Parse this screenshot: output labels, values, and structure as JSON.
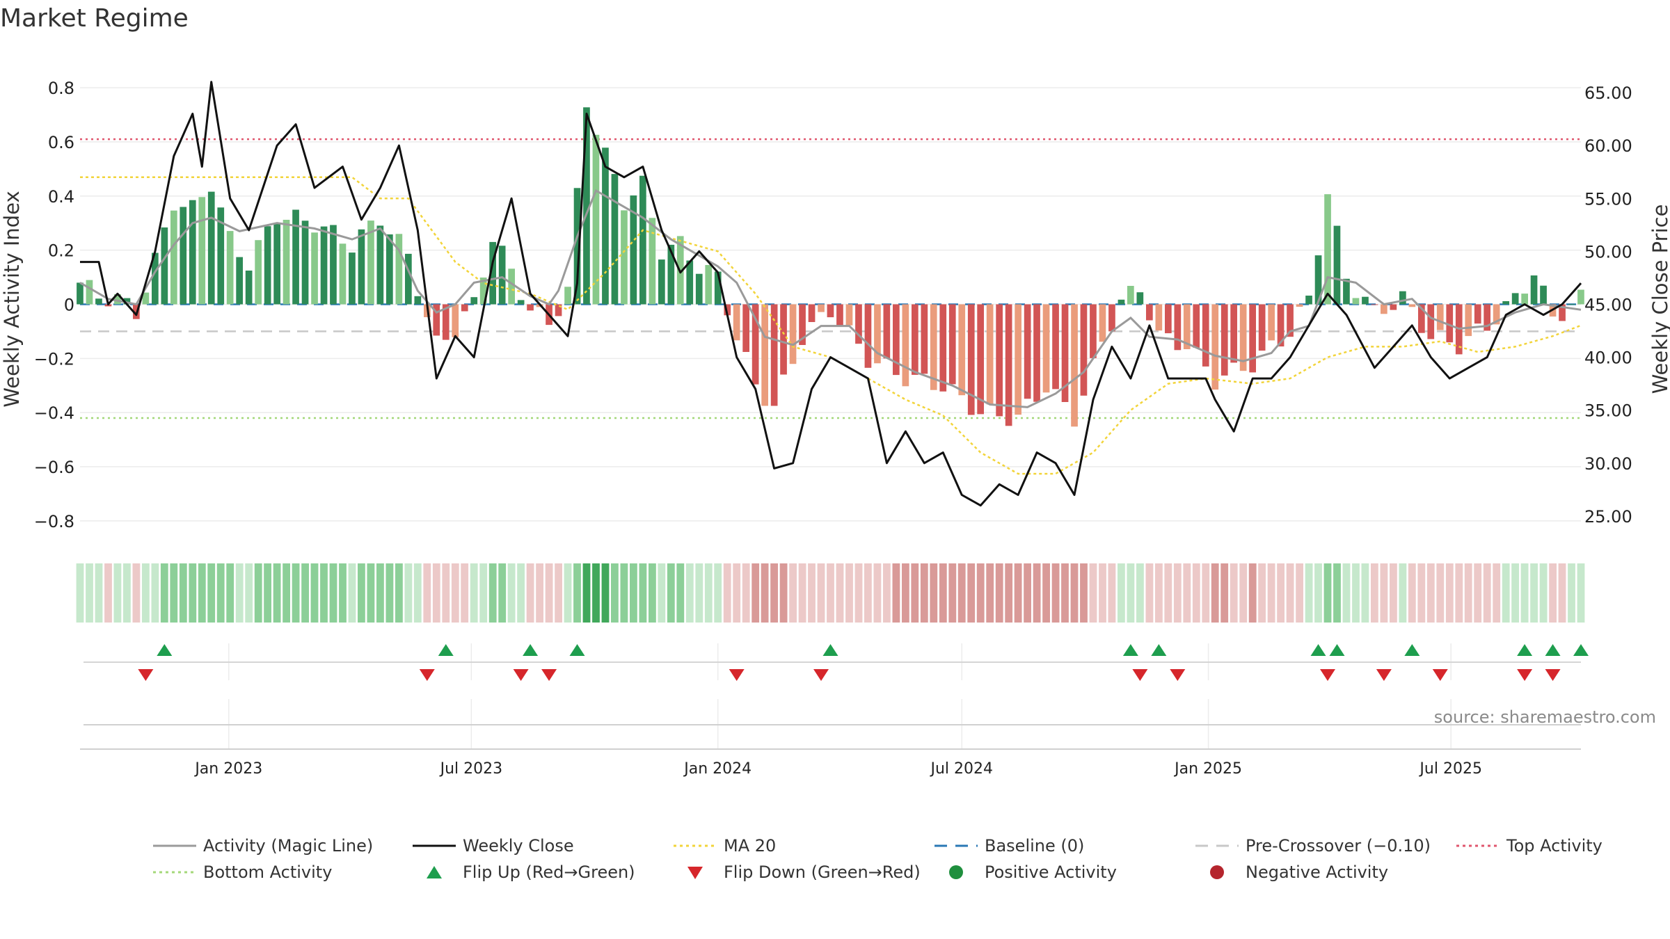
{
  "chart_data": {
    "type": "bar",
    "title": "Market Regime",
    "ylabel_left": "Weekly Activity Index",
    "ylabel_right": "Weekly Close Price",
    "ylim_left": [
      -0.88,
      0.88
    ],
    "ylim_right": [
      22.5,
      67.5
    ],
    "yticks_left": [
      0.8,
      0.6,
      0.4,
      0.2,
      0,
      -0.2,
      -0.4,
      -0.6,
      -0.8
    ],
    "ytick_labels_left": [
      "0.8",
      "0.6",
      "0.4",
      "0.2",
      "0",
      "−0.2",
      "−0.4",
      "−0.6",
      "−0.8"
    ],
    "yticks_right": [
      65,
      60,
      55,
      50,
      45,
      40,
      35,
      30,
      25
    ],
    "ytick_labels_right": [
      "65.00",
      "60.00",
      "55.00",
      "50.00",
      "45.00",
      "40.00",
      "35.00",
      "30.00",
      "25.00"
    ],
    "x_range": [
      "2022-09-12",
      "2025-10-06"
    ],
    "x_ticks": [
      {
        "date": "2023-01-01",
        "label": "Jan 2023"
      },
      {
        "date": "2023-07-01",
        "label": "Jul 2023"
      },
      {
        "date": "2024-01-01",
        "label": "Jan 2024"
      },
      {
        "date": "2024-07-01",
        "label": "Jul 2024"
      },
      {
        "date": "2025-01-01",
        "label": "Jan 2025"
      },
      {
        "date": "2025-07-01",
        "label": "Jul 2025"
      }
    ],
    "top_activity": 0.61,
    "bottom_activity": -0.42,
    "pre_crossover": -0.1,
    "baseline": 0,
    "activity_keypoints": [
      [
        "2022-09-12",
        0.08
      ],
      [
        "2022-10-03",
        0.02
      ],
      [
        "2022-10-24",
        0.0
      ],
      [
        "2022-11-07",
        0.12
      ],
      [
        "2022-11-21",
        0.22
      ],
      [
        "2022-12-05",
        0.3
      ],
      [
        "2022-12-19",
        0.32
      ],
      [
        "2023-01-09",
        0.27
      ],
      [
        "2023-02-06",
        0.3
      ],
      [
        "2023-03-06",
        0.28
      ],
      [
        "2023-04-03",
        0.24
      ],
      [
        "2023-04-24",
        0.28
      ],
      [
        "2023-05-08",
        0.2
      ],
      [
        "2023-05-22",
        0.05
      ],
      [
        "2023-06-05",
        -0.03
      ],
      [
        "2023-06-19",
        0.0
      ],
      [
        "2023-07-03",
        0.08
      ],
      [
        "2023-07-24",
        0.1
      ],
      [
        "2023-08-14",
        0.03
      ],
      [
        "2023-08-28",
        0.0
      ],
      [
        "2023-09-04",
        0.05
      ],
      [
        "2023-09-18",
        0.25
      ],
      [
        "2023-10-02",
        0.42
      ],
      [
        "2023-10-16",
        0.38
      ],
      [
        "2023-11-06",
        0.32
      ],
      [
        "2023-11-27",
        0.24
      ],
      [
        "2023-12-18",
        0.18
      ],
      [
        "2024-01-01",
        0.14
      ],
      [
        "2024-01-15",
        0.08
      ],
      [
        "2024-02-05",
        -0.12
      ],
      [
        "2024-02-26",
        -0.15
      ],
      [
        "2024-03-18",
        -0.08
      ],
      [
        "2024-04-08",
        -0.08
      ],
      [
        "2024-04-29",
        -0.18
      ],
      [
        "2024-05-27",
        -0.25
      ],
      [
        "2024-06-24",
        -0.3
      ],
      [
        "2024-07-22",
        -0.37
      ],
      [
        "2024-08-19",
        -0.38
      ],
      [
        "2024-09-09",
        -0.33
      ],
      [
        "2024-09-30",
        -0.25
      ],
      [
        "2024-10-21",
        -0.1
      ],
      [
        "2024-11-04",
        -0.05
      ],
      [
        "2024-11-18",
        -0.12
      ],
      [
        "2024-12-09",
        -0.13
      ],
      [
        "2025-01-06",
        -0.19
      ],
      [
        "2025-01-27",
        -0.21
      ],
      [
        "2025-02-17",
        -0.18
      ],
      [
        "2025-03-03",
        -0.1
      ],
      [
        "2025-03-17",
        -0.08
      ],
      [
        "2025-03-31",
        0.1
      ],
      [
        "2025-04-21",
        0.08
      ],
      [
        "2025-05-12",
        0.0
      ],
      [
        "2025-06-02",
        0.02
      ],
      [
        "2025-06-16",
        -0.05
      ],
      [
        "2025-07-07",
        -0.09
      ],
      [
        "2025-07-28",
        -0.08
      ],
      [
        "2025-08-18",
        -0.03
      ],
      [
        "2025-09-08",
        0.0
      ],
      [
        "2025-10-06",
        -0.02
      ]
    ],
    "close_keypoints": [
      [
        "2022-09-12",
        49.0
      ],
      [
        "2022-09-26",
        49.0
      ],
      [
        "2022-10-03",
        45.0
      ],
      [
        "2022-10-10",
        46.0
      ],
      [
        "2022-10-24",
        44.0
      ],
      [
        "2022-11-07",
        50.0
      ],
      [
        "2022-11-21",
        59.0
      ],
      [
        "2022-12-05",
        63.0
      ],
      [
        "2022-12-12",
        58.0
      ],
      [
        "2022-12-19",
        66.0
      ],
      [
        "2023-01-02",
        55.0
      ],
      [
        "2023-01-16",
        52.0
      ],
      [
        "2023-02-06",
        60.0
      ],
      [
        "2023-02-20",
        62.0
      ],
      [
        "2023-03-06",
        56.0
      ],
      [
        "2023-03-27",
        58.0
      ],
      [
        "2023-04-10",
        53.0
      ],
      [
        "2023-04-24",
        56.0
      ],
      [
        "2023-05-08",
        60.0
      ],
      [
        "2023-05-22",
        52.0
      ],
      [
        "2023-06-05",
        38.0
      ],
      [
        "2023-06-19",
        42.0
      ],
      [
        "2023-07-03",
        40.0
      ],
      [
        "2023-07-17",
        49.0
      ],
      [
        "2023-07-31",
        55.0
      ],
      [
        "2023-08-14",
        46.0
      ],
      [
        "2023-08-28",
        44.0
      ],
      [
        "2023-09-11",
        42.0
      ],
      [
        "2023-09-18",
        47.0
      ],
      [
        "2023-09-25",
        63.0
      ],
      [
        "2023-10-09",
        58.0
      ],
      [
        "2023-10-23",
        57.0
      ],
      [
        "2023-11-06",
        58.0
      ],
      [
        "2023-11-20",
        52.0
      ],
      [
        "2023-12-04",
        48.0
      ],
      [
        "2023-12-18",
        50.0
      ],
      [
        "2024-01-01",
        48.0
      ],
      [
        "2024-01-15",
        40.0
      ],
      [
        "2024-01-29",
        37.0
      ],
      [
        "2024-02-12",
        29.5
      ],
      [
        "2024-02-26",
        30.0
      ],
      [
        "2024-03-11",
        37.0
      ],
      [
        "2024-03-25",
        40.0
      ],
      [
        "2024-04-08",
        39.0
      ],
      [
        "2024-04-22",
        38.0
      ],
      [
        "2024-05-06",
        30.0
      ],
      [
        "2024-05-20",
        33.0
      ],
      [
        "2024-06-03",
        30.0
      ],
      [
        "2024-06-17",
        31.0
      ],
      [
        "2024-07-01",
        27.0
      ],
      [
        "2024-07-15",
        26.0
      ],
      [
        "2024-07-29",
        28.0
      ],
      [
        "2024-08-12",
        27.0
      ],
      [
        "2024-08-26",
        31.0
      ],
      [
        "2024-09-09",
        30.0
      ],
      [
        "2024-09-23",
        27.0
      ],
      [
        "2024-10-07",
        36.0
      ],
      [
        "2024-10-21",
        41.0
      ],
      [
        "2024-11-04",
        38.0
      ],
      [
        "2024-11-18",
        43.0
      ],
      [
        "2024-12-02",
        38.0
      ],
      [
        "2024-12-16",
        38.0
      ],
      [
        "2024-12-30",
        38.0
      ],
      [
        "2025-01-06",
        36.0
      ],
      [
        "2025-01-20",
        33.0
      ],
      [
        "2025-02-03",
        38.0
      ],
      [
        "2025-02-17",
        38.0
      ],
      [
        "2025-03-03",
        40.0
      ],
      [
        "2025-03-17",
        43.0
      ],
      [
        "2025-03-31",
        46.0
      ],
      [
        "2025-04-14",
        44.0
      ],
      [
        "2025-05-05",
        39.0
      ],
      [
        "2025-05-19",
        41.0
      ],
      [
        "2025-06-02",
        43.0
      ],
      [
        "2025-06-16",
        40.0
      ],
      [
        "2025-06-30",
        38.0
      ],
      [
        "2025-07-14",
        39.0
      ],
      [
        "2025-07-28",
        40.0
      ],
      [
        "2025-08-11",
        44.0
      ],
      [
        "2025-08-25",
        45.0
      ],
      [
        "2025-09-08",
        44.0
      ],
      [
        "2025-09-22",
        45.0
      ],
      [
        "2025-10-06",
        47.0
      ]
    ],
    "ma20_keypoints": [
      [
        "2022-09-12",
        57.0
      ],
      [
        "2023-04-03",
        57.0
      ],
      [
        "2023-04-24",
        55.0
      ],
      [
        "2023-05-15",
        55.0
      ],
      [
        "2023-06-19",
        49.0
      ],
      [
        "2023-07-10",
        47.0
      ],
      [
        "2023-08-14",
        46.0
      ],
      [
        "2023-09-11",
        44.5
      ],
      [
        "2023-10-09",
        48.0
      ],
      [
        "2023-11-06",
        52.0
      ],
      [
        "2023-12-04",
        51.0
      ],
      [
        "2024-01-01",
        50.0
      ],
      [
        "2024-01-29",
        46.0
      ],
      [
        "2024-02-26",
        41.0
      ],
      [
        "2024-03-25",
        40.0
      ],
      [
        "2024-04-22",
        38.0
      ],
      [
        "2024-05-20",
        36.0
      ],
      [
        "2024-06-17",
        34.5
      ],
      [
        "2024-07-15",
        31.0
      ],
      [
        "2024-08-12",
        29.0
      ],
      [
        "2024-09-09",
        29.0
      ],
      [
        "2024-10-07",
        31.0
      ],
      [
        "2024-11-04",
        35.0
      ],
      [
        "2024-12-02",
        37.5
      ],
      [
        "2024-12-30",
        38.0
      ],
      [
        "2025-02-03",
        37.5
      ],
      [
        "2025-03-03",
        38.0
      ],
      [
        "2025-03-31",
        40.0
      ],
      [
        "2025-04-28",
        41.0
      ],
      [
        "2025-05-26",
        41.0
      ],
      [
        "2025-06-23",
        41.5
      ],
      [
        "2025-07-21",
        40.5
      ],
      [
        "2025-08-18",
        41.0
      ],
      [
        "2025-09-15",
        42.0
      ],
      [
        "2025-10-06",
        43.0
      ]
    ],
    "bar_keypoints": [
      [
        "2022-09-12",
        0.08
      ],
      [
        "2022-09-26",
        0.03
      ],
      [
        "2022-10-10",
        0.02
      ],
      [
        "2022-10-24",
        -0.03
      ],
      [
        "2022-11-07",
        0.16
      ],
      [
        "2022-11-21",
        0.38
      ],
      [
        "2022-12-05",
        0.35
      ],
      [
        "2022-12-19",
        0.45
      ],
      [
        "2023-01-02",
        0.24
      ],
      [
        "2023-01-16",
        0.15
      ],
      [
        "2023-02-06",
        0.33
      ],
      [
        "2023-03-06",
        0.3
      ],
      [
        "2023-04-03",
        0.22
      ],
      [
        "2023-04-24",
        0.32
      ],
      [
        "2023-05-15",
        0.18
      ],
      [
        "2023-05-29",
        -0.05
      ],
      [
        "2023-06-05",
        -0.15
      ],
      [
        "2023-06-19",
        -0.09
      ],
      [
        "2023-07-03",
        0.0
      ],
      [
        "2023-07-17",
        0.25
      ],
      [
        "2023-07-31",
        0.12
      ],
      [
        "2023-08-14",
        -0.02
      ],
      [
        "2023-08-28",
        -0.07
      ],
      [
        "2023-09-11",
        0.05
      ],
      [
        "2023-09-25",
        0.75
      ],
      [
        "2023-10-09",
        0.55
      ],
      [
        "2023-10-23",
        0.38
      ],
      [
        "2023-11-06",
        0.44
      ],
      [
        "2023-11-20",
        0.2
      ],
      [
        "2023-12-04",
        0.22
      ],
      [
        "2023-12-18",
        0.14
      ],
      [
        "2024-01-01",
        0.1
      ],
      [
        "2024-01-15",
        -0.12
      ],
      [
        "2024-01-29",
        -0.3
      ],
      [
        "2024-02-12",
        -0.38
      ],
      [
        "2024-03-04",
        -0.12
      ],
      [
        "2024-03-25",
        -0.02
      ],
      [
        "2024-04-22",
        -0.2
      ],
      [
        "2024-05-20",
        -0.27
      ],
      [
        "2024-06-17",
        -0.3
      ],
      [
        "2024-07-15",
        -0.4
      ],
      [
        "2024-08-12",
        -0.42
      ],
      [
        "2024-09-02",
        -0.3
      ],
      [
        "2024-09-23",
        -0.42
      ],
      [
        "2024-10-14",
        -0.14
      ],
      [
        "2024-10-28",
        0.01
      ],
      [
        "2024-11-11",
        0.06
      ],
      [
        "2024-11-25",
        -0.12
      ],
      [
        "2024-12-16",
        -0.15
      ],
      [
        "2025-01-06",
        -0.28
      ],
      [
        "2025-02-03",
        -0.22
      ],
      [
        "2025-03-03",
        -0.1
      ],
      [
        "2025-03-17",
        0.02
      ],
      [
        "2025-03-31",
        0.41
      ],
      [
        "2025-04-14",
        0.1
      ],
      [
        "2025-05-05",
        -0.03
      ],
      [
        "2025-05-26",
        0.02
      ],
      [
        "2025-06-16",
        -0.12
      ],
      [
        "2025-07-07",
        -0.15
      ],
      [
        "2025-07-28",
        -0.08
      ],
      [
        "2025-08-18",
        0.02
      ],
      [
        "2025-09-01",
        0.12
      ],
      [
        "2025-09-15",
        -0.05
      ],
      [
        "2025-10-06",
        0.02
      ]
    ],
    "flip_up_dates": [
      "2022-11-14",
      "2023-06-12",
      "2023-08-14",
      "2023-09-18",
      "2024-03-25",
      "2024-11-04",
      "2024-11-25",
      "2025-03-24",
      "2025-04-07",
      "2025-06-02",
      "2025-08-25",
      "2025-09-15",
      "2025-10-06"
    ],
    "flip_down_dates": [
      "2022-10-31",
      "2023-05-29",
      "2023-08-07",
      "2023-08-28",
      "2024-01-15",
      "2024-03-18",
      "2024-11-11",
      "2024-12-09",
      "2025-03-31",
      "2025-05-12",
      "2025-06-23",
      "2025-08-25",
      "2025-09-15"
    ],
    "legend": [
      {
        "label": "Activity (Magic Line)",
        "kind": "line",
        "color": "#9a9a9a"
      },
      {
        "label": "Weekly Close",
        "kind": "line",
        "color": "#111111"
      },
      {
        "label": "MA 20",
        "kind": "dotted",
        "color": "#f2d43a"
      },
      {
        "label": "Baseline (0)",
        "kind": "dashed",
        "color": "#2a78b5"
      },
      {
        "label": "Pre-Crossover (−0.10)",
        "kind": "dashed",
        "color": "#c8c8c8"
      },
      {
        "label": "Top Activity",
        "kind": "dotted",
        "color": "#e0566e"
      },
      {
        "label": "Bottom Activity",
        "kind": "dotted",
        "color": "#a4d87a"
      },
      {
        "label": "Flip Up (Red→Green)",
        "kind": "triangle-up",
        "color": "#1e9e4e"
      },
      {
        "label": "Flip Down (Green→Red)",
        "kind": "triangle-down",
        "color": "#d6262b"
      },
      {
        "label": "Positive Activity",
        "kind": "circle",
        "color": "#1f8f3e"
      },
      {
        "label": "Negative Activity",
        "kind": "circle",
        "color": "#b5252d"
      }
    ]
  },
  "source": "source: sharemaestro.com",
  "colors": {
    "pos_dark": "#2e8b57",
    "pos_light": "#88c98a",
    "neg_dark": "#d25555",
    "neg_light": "#ea9c7c",
    "activity": "#9a9a9a",
    "close": "#111111",
    "ma20": "#f2d43a",
    "baseline": "#2a78b5",
    "pre_crossover": "#c8c8c8",
    "top": "#e0566e",
    "bottom": "#a4d87a",
    "flip_up": "#1e9e4e",
    "flip_down": "#d6262b"
  }
}
